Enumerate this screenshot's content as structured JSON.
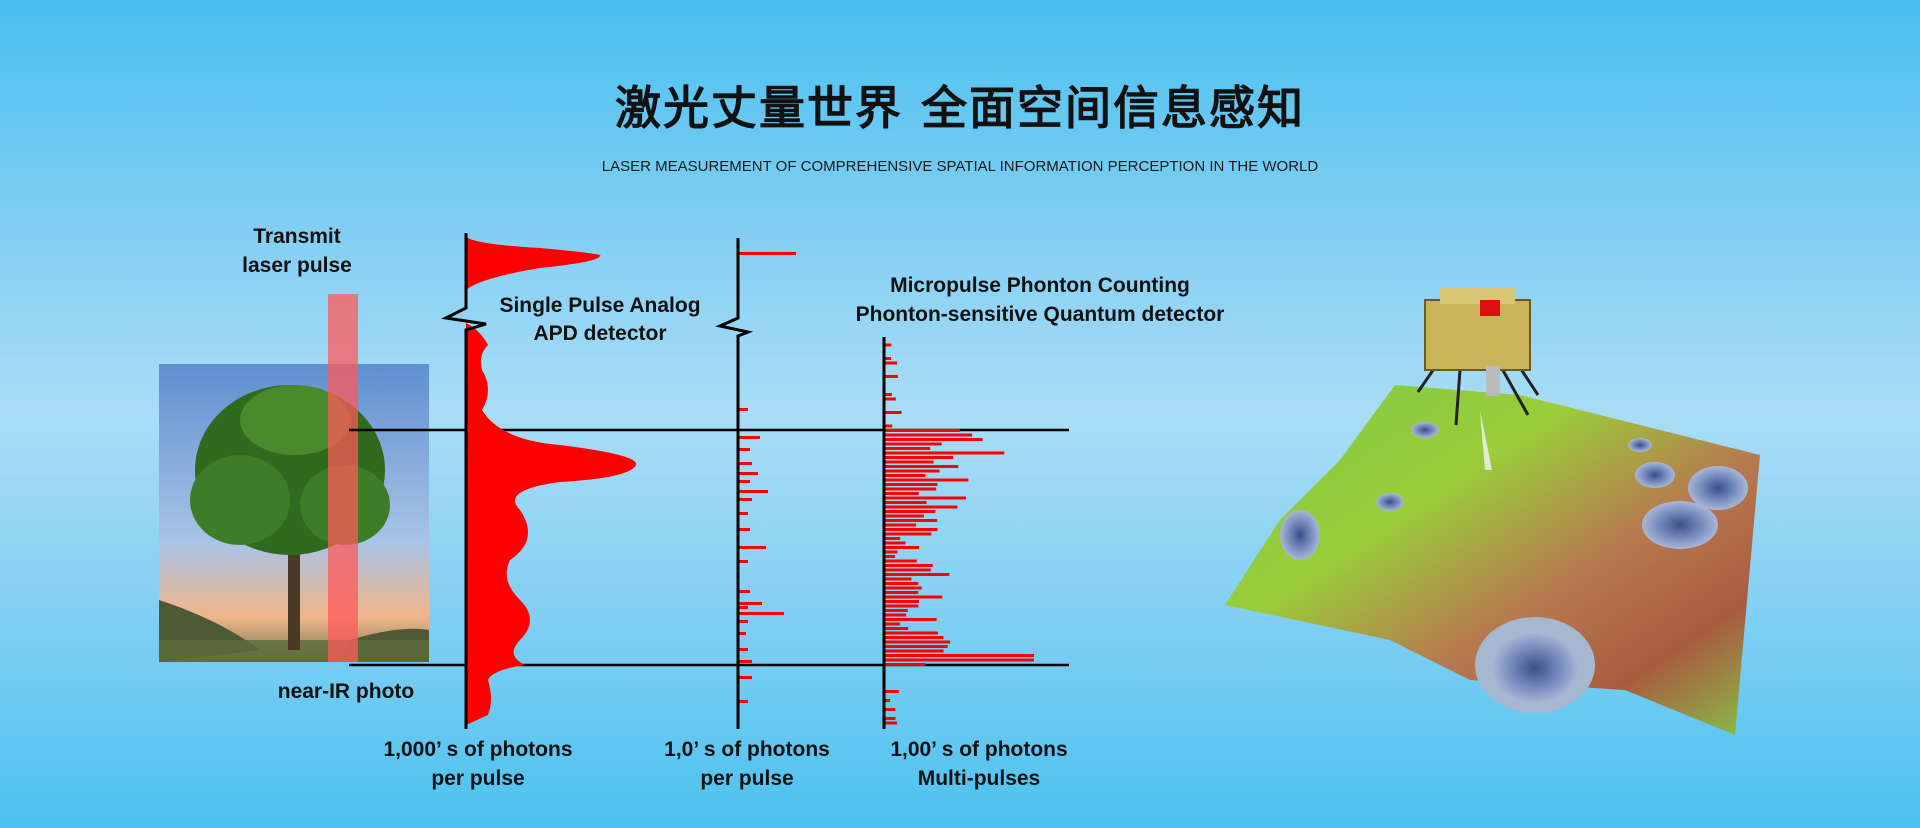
{
  "header": {
    "title": "激光丈量世界 全面空间信息感知",
    "subtitle": "LASER MEASUREMENT OF COMPREHENSIVE SPATIAL INFORMATION PERCEPTION IN THE WORLD"
  },
  "diagram": {
    "transmit_label": [
      "Transmit",
      "laser pulse"
    ],
    "photo_label": "near-IR photo",
    "analog_label": [
      "Single Pulse Analog",
      "APD detector"
    ],
    "micropulse_label": [
      "Micropulse Phonton Counting",
      "Phonton-sensitive Quantum detector"
    ],
    "axis_labels": [
      [
        "1,000’ s of photons",
        "per pulse"
      ],
      [
        "1,0’ s of photons",
        "per pulse"
      ],
      [
        "1,00’ s of photons",
        "Multi-pulses"
      ]
    ],
    "colors": {
      "signal": "#ff0000",
      "laser_beam": "#ff5a5a",
      "axis": "#000000"
    }
  }
}
